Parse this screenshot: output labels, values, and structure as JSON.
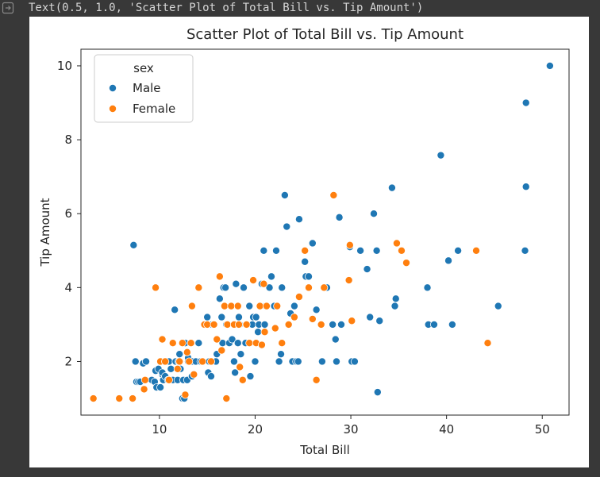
{
  "output": {
    "text": "Text(0.5, 1.0, 'Scatter Plot of Total Bill vs. Tip Amount')",
    "icon": "output-arrow-icon"
  },
  "chart_data": {
    "type": "scatter",
    "title": "Scatter Plot of Total Bill vs. Tip Amount",
    "xlabel": "Total Bill",
    "ylabel": "Tip Amount",
    "xlim": [
      1.8,
      52.8
    ],
    "ylim": [
      0.55,
      10.45
    ],
    "xticks": [
      10,
      20,
      30,
      40,
      50
    ],
    "yticks": [
      2,
      4,
      6,
      8,
      10
    ],
    "grid": false,
    "legend": {
      "title": "sex",
      "placement": "top-left"
    },
    "series": [
      {
        "name": "Male",
        "color": "#1f77b4",
        "points": [
          [
            7.3,
            5.15
          ],
          [
            7.5,
            2.0
          ],
          [
            7.6,
            1.45
          ],
          [
            7.8,
            1.45
          ],
          [
            8.0,
            1.45
          ],
          [
            8.3,
            1.95
          ],
          [
            8.6,
            2.0
          ],
          [
            9.2,
            1.5
          ],
          [
            9.5,
            1.45
          ],
          [
            9.6,
            1.75
          ],
          [
            9.7,
            1.3
          ],
          [
            9.9,
            1.8
          ],
          [
            10.1,
            1.3
          ],
          [
            10.2,
            2.0
          ],
          [
            10.3,
            1.65
          ],
          [
            10.3,
            1.7
          ],
          [
            10.4,
            1.5
          ],
          [
            10.5,
            2.0
          ],
          [
            10.6,
            1.6
          ],
          [
            10.9,
            1.5
          ],
          [
            11.0,
            2.0
          ],
          [
            11.2,
            1.8
          ],
          [
            11.4,
            1.5
          ],
          [
            11.6,
            3.4
          ],
          [
            11.7,
            2.0
          ],
          [
            11.9,
            1.5
          ],
          [
            12.0,
            2.0
          ],
          [
            12.1,
            2.2
          ],
          [
            12.2,
            1.8
          ],
          [
            12.4,
            1.0
          ],
          [
            12.5,
            1.5
          ],
          [
            12.6,
            1.0
          ],
          [
            12.7,
            2.5
          ],
          [
            12.9,
            1.5
          ],
          [
            13.0,
            2.0
          ],
          [
            13.0,
            2.1
          ],
          [
            13.3,
            2.5
          ],
          [
            13.4,
            2.0
          ],
          [
            13.4,
            1.6
          ],
          [
            13.8,
            2.0
          ],
          [
            14.1,
            2.5
          ],
          [
            14.3,
            2.0
          ],
          [
            14.5,
            2.0
          ],
          [
            14.8,
            3.0
          ],
          [
            15.0,
            3.2
          ],
          [
            15.1,
            1.7
          ],
          [
            15.2,
            2.0
          ],
          [
            15.4,
            1.6
          ],
          [
            15.5,
            3.0
          ],
          [
            15.7,
            3.0
          ],
          [
            15.9,
            2.0
          ],
          [
            16.0,
            2.2
          ],
          [
            16.3,
            3.7
          ],
          [
            16.5,
            3.2
          ],
          [
            16.6,
            2.5
          ],
          [
            16.7,
            4.0
          ],
          [
            16.9,
            4.0
          ],
          [
            17.0,
            3.0
          ],
          [
            17.3,
            2.5
          ],
          [
            17.5,
            3.5
          ],
          [
            17.6,
            2.6
          ],
          [
            17.8,
            2.0
          ],
          [
            17.9,
            1.7
          ],
          [
            18.0,
            4.1
          ],
          [
            18.2,
            2.5
          ],
          [
            18.3,
            3.2
          ],
          [
            18.4,
            3.0
          ],
          [
            18.5,
            2.2
          ],
          [
            18.8,
            4.0
          ],
          [
            19.0,
            2.5
          ],
          [
            19.4,
            3.5
          ],
          [
            19.5,
            1.6
          ],
          [
            19.7,
            3.0
          ],
          [
            19.8,
            3.2
          ],
          [
            20.0,
            2.0
          ],
          [
            20.1,
            3.2
          ],
          [
            20.3,
            2.8
          ],
          [
            20.4,
            3.0
          ],
          [
            20.7,
            4.1
          ],
          [
            20.9,
            5.0
          ],
          [
            21.0,
            3.0
          ],
          [
            21.1,
            3.5
          ],
          [
            21.5,
            4.0
          ],
          [
            21.7,
            4.3
          ],
          [
            22.0,
            3.5
          ],
          [
            22.2,
            5.0
          ],
          [
            22.5,
            2.0
          ],
          [
            22.7,
            2.2
          ],
          [
            22.8,
            4.0
          ],
          [
            23.1,
            6.5
          ],
          [
            23.3,
            5.65
          ],
          [
            23.7,
            3.3
          ],
          [
            23.9,
            2.0
          ],
          [
            24.1,
            3.5
          ],
          [
            24.3,
            2.0
          ],
          [
            24.5,
            2.0
          ],
          [
            24.6,
            5.85
          ],
          [
            25.2,
            4.7
          ],
          [
            25.3,
            4.3
          ],
          [
            25.6,
            4.3
          ],
          [
            26.0,
            5.2
          ],
          [
            26.4,
            3.4
          ],
          [
            27.0,
            2.0
          ],
          [
            27.5,
            4.0
          ],
          [
            28.1,
            3.0
          ],
          [
            28.4,
            2.6
          ],
          [
            28.5,
            2.0
          ],
          [
            29.0,
            3.0
          ],
          [
            28.8,
            5.9
          ],
          [
            29.9,
            5.1
          ],
          [
            30.1,
            2.0
          ],
          [
            30.4,
            2.0
          ],
          [
            31.0,
            5.0
          ],
          [
            31.7,
            4.5
          ],
          [
            32.0,
            3.2
          ],
          [
            32.4,
            6.0
          ],
          [
            32.7,
            5.0
          ],
          [
            32.8,
            1.17
          ],
          [
            33.0,
            3.1
          ],
          [
            34.3,
            6.7
          ],
          [
            34.6,
            3.5
          ],
          [
            34.7,
            3.7
          ],
          [
            38.0,
            4.0
          ],
          [
            38.1,
            3.0
          ],
          [
            38.7,
            3.0
          ],
          [
            39.4,
            7.58
          ],
          [
            40.2,
            4.73
          ],
          [
            40.6,
            3.0
          ],
          [
            41.2,
            5.0
          ],
          [
            45.4,
            3.5
          ],
          [
            48.2,
            5.0
          ],
          [
            48.3,
            9.0
          ],
          [
            48.3,
            6.73
          ],
          [
            50.8,
            10.0
          ]
        ]
      },
      {
        "name": "Female",
        "color": "#ff7f0e",
        "points": [
          [
            3.1,
            1.0
          ],
          [
            5.8,
            1.0
          ],
          [
            7.2,
            1.0
          ],
          [
            8.4,
            1.25
          ],
          [
            8.5,
            1.5
          ],
          [
            9.6,
            4.0
          ],
          [
            10.1,
            2.0
          ],
          [
            10.3,
            2.6
          ],
          [
            10.6,
            2.0
          ],
          [
            11.0,
            1.5
          ],
          [
            11.4,
            2.5
          ],
          [
            11.9,
            1.8
          ],
          [
            12.1,
            2.0
          ],
          [
            12.4,
            2.5
          ],
          [
            12.7,
            1.1
          ],
          [
            12.9,
            2.25
          ],
          [
            13.1,
            2.0
          ],
          [
            13.3,
            2.5
          ],
          [
            13.4,
            3.5
          ],
          [
            13.6,
            1.65
          ],
          [
            14.1,
            4.0
          ],
          [
            14.5,
            2.0
          ],
          [
            14.7,
            3.0
          ],
          [
            15.0,
            3.0
          ],
          [
            15.4,
            2.0
          ],
          [
            15.7,
            3.0
          ],
          [
            16.0,
            2.6
          ],
          [
            16.3,
            4.3
          ],
          [
            16.5,
            2.3
          ],
          [
            16.8,
            3.5
          ],
          [
            17.0,
            1.0
          ],
          [
            17.1,
            3.0
          ],
          [
            17.5,
            3.5
          ],
          [
            17.8,
            3.0
          ],
          [
            18.2,
            3.5
          ],
          [
            18.3,
            3.0
          ],
          [
            18.4,
            1.85
          ],
          [
            18.7,
            1.5
          ],
          [
            19.1,
            3.0
          ],
          [
            19.4,
            2.5
          ],
          [
            19.8,
            4.2
          ],
          [
            20.1,
            2.5
          ],
          [
            20.5,
            3.5
          ],
          [
            20.7,
            2.45
          ],
          [
            20.9,
            4.1
          ],
          [
            21.0,
            2.8
          ],
          [
            21.2,
            3.5
          ],
          [
            22.1,
            2.9
          ],
          [
            22.3,
            3.5
          ],
          [
            22.8,
            2.5
          ],
          [
            23.5,
            3.0
          ],
          [
            24.1,
            3.2
          ],
          [
            24.6,
            3.75
          ],
          [
            25.2,
            5.0
          ],
          [
            25.6,
            4.0
          ],
          [
            26.0,
            3.15
          ],
          [
            26.4,
            1.5
          ],
          [
            26.9,
            3.0
          ],
          [
            27.2,
            4.0
          ],
          [
            28.2,
            6.5
          ],
          [
            29.8,
            4.2
          ],
          [
            29.9,
            5.15
          ],
          [
            30.1,
            3.1
          ],
          [
            34.8,
            5.2
          ],
          [
            35.3,
            5.0
          ],
          [
            35.8,
            4.67
          ],
          [
            43.1,
            5.0
          ],
          [
            44.3,
            2.5
          ]
        ]
      }
    ]
  }
}
